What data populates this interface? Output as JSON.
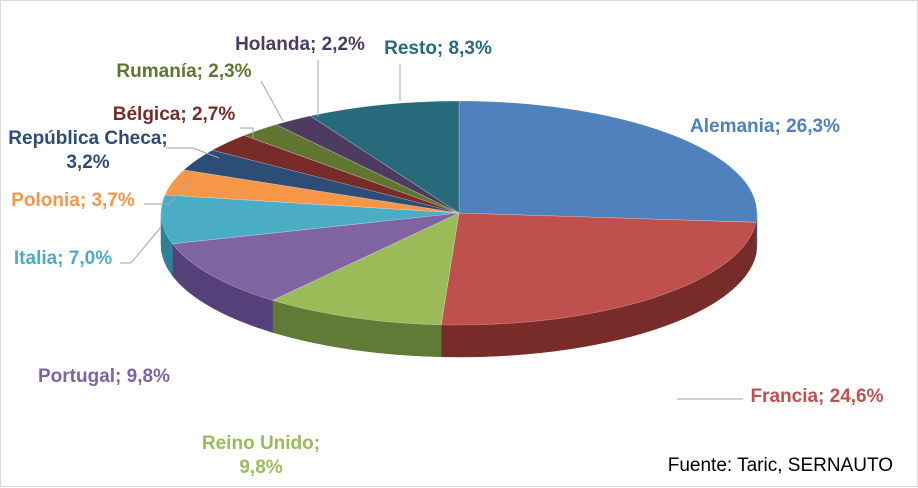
{
  "chart_data": {
    "type": "pie",
    "style": "3d-exploded",
    "title": "",
    "source": "Fuente: Taric, SERNAUTO",
    "slices": [
      {
        "name": "Alemania",
        "value": 26.3,
        "label": "Alemania; 26,3%",
        "color": "#4f81bd",
        "side": "#3a6395"
      },
      {
        "name": "Francia",
        "value": 24.6,
        "label": "Francia; 24,6%",
        "color": "#c0504d",
        "side": "#772c2a"
      },
      {
        "name": "Reino Unido",
        "value": 9.8,
        "label_lines": [
          "Reino Unido;",
          "9,8%"
        ],
        "color": "#9bbb59",
        "side": "#617a35"
      },
      {
        "name": "Portugal",
        "value": 9.8,
        "label": "Portugal; 9,8%",
        "color": "#8064a2",
        "side": "#55407a"
      },
      {
        "name": "Italia",
        "value": 7.0,
        "label": "Italia; 7,0%",
        "color": "#4bacc6",
        "side": "#2f7f96"
      },
      {
        "name": "Polonia",
        "value": 3.7,
        "label": "Polonia; 3,7%",
        "color": "#f79646",
        "side": "#b86a28"
      },
      {
        "name": "República Checa",
        "value": 3.2,
        "label_lines": [
          "República Checa;",
          "3,2%"
        ],
        "color": "#2c4d75",
        "side": "#1c324d"
      },
      {
        "name": "Bélgica",
        "value": 2.7,
        "label": "Bélgica; 2,7%",
        "color": "#772c2a",
        "side": "#4f1c1a"
      },
      {
        "name": "Rumanía",
        "value": 2.3,
        "label": "Rumanía; 2,3%",
        "color": "#5f7530",
        "side": "#3e4d1f"
      },
      {
        "name": "Holanda",
        "value": 2.2,
        "label": "Holanda; 2,2%",
        "color": "#4d3b62",
        "side": "#322640"
      },
      {
        "name": "Resto",
        "value": 8.3,
        "label": "Resto; 8,3%",
        "color": "#276a7c",
        "side": "#184552"
      }
    ]
  }
}
